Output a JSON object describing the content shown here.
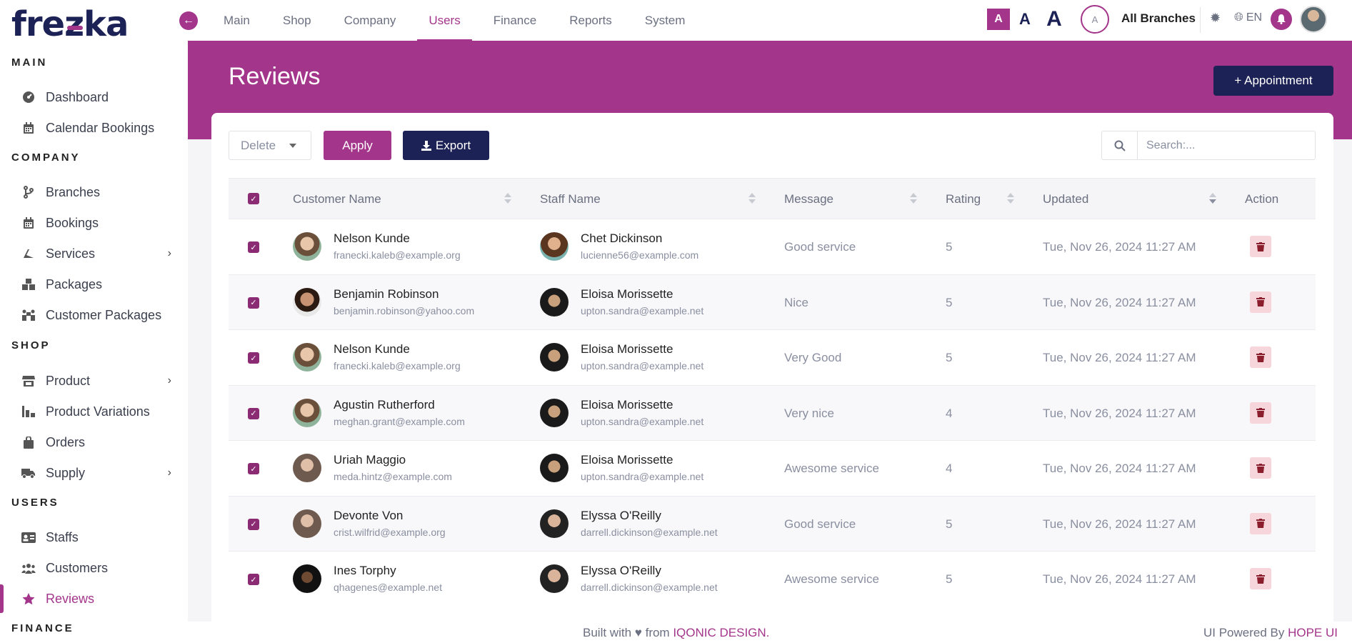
{
  "brand": {
    "logo_pre": "fre",
    "logo_z": "z",
    "logo_post": "ka"
  },
  "sidebar": {
    "sections": [
      {
        "title": "MAIN"
      },
      {
        "title": "COMPANY"
      },
      {
        "title": "SHOP"
      },
      {
        "title": "USERS"
      },
      {
        "title": "FINANCE"
      }
    ],
    "items": [
      {
        "label": "Dashboard",
        "icon": "dashboard-icon"
      },
      {
        "label": "Calendar Bookings",
        "icon": "calendar-icon"
      },
      {
        "label": "Branches",
        "icon": "branch-icon"
      },
      {
        "label": "Bookings",
        "icon": "calendar-icon"
      },
      {
        "label": "Services",
        "icon": "services-icon"
      },
      {
        "label": "Packages",
        "icon": "packages-icon"
      },
      {
        "label": "Customer Packages",
        "icon": "customer-packages-icon"
      },
      {
        "label": "Product",
        "icon": "store-icon"
      },
      {
        "label": "Product Variations",
        "icon": "variations-icon"
      },
      {
        "label": "Orders",
        "icon": "bag-icon"
      },
      {
        "label": "Supply",
        "icon": "truck-icon"
      },
      {
        "label": "Staffs",
        "icon": "id-card-icon"
      },
      {
        "label": "Customers",
        "icon": "users-icon"
      },
      {
        "label": "Reviews",
        "icon": "star-icon"
      }
    ]
  },
  "topnav": {
    "items": [
      "Main",
      "Shop",
      "Company",
      "Users",
      "Finance",
      "Reports",
      "System"
    ],
    "active": "Users",
    "font_a": "A",
    "branch_initial": "A",
    "branch_label": "All Branches",
    "language": "EN"
  },
  "header": {
    "title": "Reviews",
    "appointment_label": "+ Appointment"
  },
  "toolbar": {
    "bulk_action": "Delete",
    "apply_label": "Apply",
    "export_label": "Export",
    "search_placeholder": "Search:..."
  },
  "table": {
    "columns": [
      "Customer Name",
      "Staff Name",
      "Message",
      "Rating",
      "Updated",
      "Action"
    ],
    "rows": [
      {
        "customer": "Nelson Kunde",
        "customer_email": "franecki.kaleb@example.org",
        "staff": "Chet Dickinson",
        "staff_email": "lucienne56@example.com",
        "message": "Good service",
        "rating": "5",
        "updated": "Tue, Nov 26, 2024 11:27 AM"
      },
      {
        "customer": "Benjamin Robinson",
        "customer_email": "benjamin.robinson@yahoo.com",
        "staff": "Eloisa Morissette",
        "staff_email": "upton.sandra@example.net",
        "message": "Nice",
        "rating": "5",
        "updated": "Tue, Nov 26, 2024 11:27 AM"
      },
      {
        "customer": "Nelson Kunde",
        "customer_email": "franecki.kaleb@example.org",
        "staff": "Eloisa Morissette",
        "staff_email": "upton.sandra@example.net",
        "message": "Very Good",
        "rating": "5",
        "updated": "Tue, Nov 26, 2024 11:27 AM"
      },
      {
        "customer": "Agustin Rutherford",
        "customer_email": "meghan.grant@example.com",
        "staff": "Eloisa Morissette",
        "staff_email": "upton.sandra@example.net",
        "message": "Very nice",
        "rating": "4",
        "updated": "Tue, Nov 26, 2024 11:27 AM"
      },
      {
        "customer": "Uriah Maggio",
        "customer_email": "meda.hintz@example.com",
        "staff": "Eloisa Morissette",
        "staff_email": "upton.sandra@example.net",
        "message": "Awesome service",
        "rating": "4",
        "updated": "Tue, Nov 26, 2024 11:27 AM"
      },
      {
        "customer": "Devonte Von",
        "customer_email": "crist.wilfrid@example.org",
        "staff": "Elyssa O'Reilly",
        "staff_email": "darrell.dickinson@example.net",
        "message": "Good service",
        "rating": "5",
        "updated": "Tue, Nov 26, 2024 11:27 AM"
      },
      {
        "customer": "Ines Torphy",
        "customer_email": "qhagenes@example.net",
        "staff": "Elyssa O'Reilly",
        "staff_email": "darrell.dickinson@example.net",
        "message": "Awesome service",
        "rating": "5",
        "updated": "Tue, Nov 26, 2024 11:27 AM"
      }
    ]
  },
  "footer": {
    "built_pre": "Built with",
    "built_from": "from",
    "built_link": "IQONIC DESIGN.",
    "powered_pre": "UI Powered By",
    "powered_link": "HOPE UI"
  },
  "colors": {
    "accent": "#a3358a",
    "navy": "#1c2255",
    "danger_bg": "#f6d6db"
  }
}
